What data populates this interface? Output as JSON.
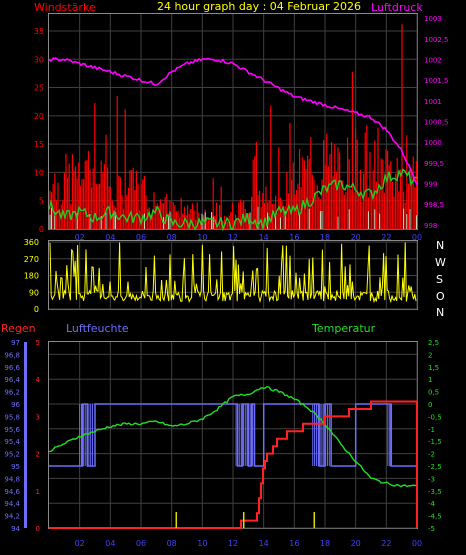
{
  "title": "24 hour graph day : 04 Februar 2026",
  "colors": {
    "wind": "#ff0000",
    "gust": "#ff0000",
    "avg_wind": "#22cc22",
    "pressure": "#ff00ff",
    "direction": "#ffff00",
    "humidity": "#6e6efa",
    "temperature": "#22dd22",
    "rain": "#ff2222",
    "axis_hours": "#4040ff",
    "grid": "#404040",
    "dir_label": "#ffffff"
  },
  "chart_data": [
    {
      "type": "line",
      "name": "wind-pressure",
      "left_label": "Windstärke",
      "right_label": "Luftdruck",
      "x_ticks": [
        "02",
        "04",
        "06",
        "08",
        "10",
        "12",
        "14",
        "16",
        "18",
        "20",
        "22",
        "00"
      ],
      "left_ticks": [
        "0",
        "5",
        "10",
        "15",
        "20",
        "25",
        "30",
        "35"
      ],
      "right_ticks": [
        "998",
        "998,5",
        "999",
        "999,5",
        "1000",
        "1000,5",
        "1001",
        "1001,5",
        "1002",
        "1002,5",
        "1003"
      ],
      "left_ylim": [
        0,
        38
      ],
      "right_ylim": [
        997.9,
        1003.1
      ],
      "x_range_hours": [
        0,
        24
      ],
      "pressure": {
        "x": [
          0,
          1,
          2,
          3,
          4,
          5,
          6,
          7,
          8,
          9,
          10,
          11,
          12,
          13,
          14,
          15,
          16,
          17,
          18,
          19,
          20,
          21,
          22,
          23,
          24
        ],
        "values": [
          1002.0,
          1002.0,
          1001.9,
          1001.8,
          1001.7,
          1001.6,
          1001.5,
          1001.4,
          1001.7,
          1001.9,
          1002.0,
          1002.0,
          1001.9,
          1001.7,
          1001.5,
          1001.3,
          1001.1,
          1001.0,
          1000.9,
          1000.8,
          1000.7,
          1000.6,
          1000.3,
          999.8,
          999.0
        ]
      },
      "avg_wind": {
        "x": [
          0,
          1,
          2,
          3,
          4,
          5,
          6,
          7,
          8,
          9,
          10,
          11,
          12,
          13,
          14,
          15,
          16,
          17,
          18,
          19,
          20,
          21,
          22,
          23,
          24
        ],
        "values": [
          4,
          2,
          3,
          2,
          3,
          2,
          2,
          3,
          1,
          1,
          1,
          1,
          1,
          2,
          1,
          3,
          3,
          5,
          7,
          8,
          7,
          6,
          9,
          10,
          8
        ]
      },
      "gust_level": {
        "x": [
          0,
          2,
          4,
          6,
          8,
          10,
          12,
          14,
          16,
          18,
          20,
          22,
          24
        ],
        "values": [
          9,
          13,
          10,
          9,
          5,
          4,
          4,
          7,
          12,
          15,
          16,
          15,
          14
        ]
      }
    },
    {
      "type": "scatter",
      "name": "wind-direction",
      "y_ticks": [
        "0",
        "90",
        "180",
        "270",
        "360"
      ],
      "ylim": [
        0,
        360
      ],
      "compass": [
        "N",
        "W",
        "S",
        "O",
        "N"
      ]
    },
    {
      "type": "line",
      "name": "humidity-temperature-rain",
      "rain_label": "Regen",
      "humidity_label": "Luftfeuchte",
      "temperature_label": "Temperatur",
      "x_ticks": [
        "02",
        "04",
        "06",
        "08",
        "10",
        "12",
        "14",
        "16",
        "18",
        "20",
        "22",
        "00"
      ],
      "humidity_ticks": [
        "94",
        "94,2",
        "94,4",
        "94,6",
        "94,8",
        "95",
        "95,2",
        "95,4",
        "95,6",
        "95,8",
        "96",
        "96,2",
        "96,4",
        "96,6",
        "96,8",
        "97"
      ],
      "rain_ticks": [
        "0",
        "1",
        "2",
        "3",
        "4",
        "5"
      ],
      "temperature_ticks": [
        "-5",
        "-4,5",
        "-4",
        "-3,5",
        "-3",
        "-2,5",
        "-2",
        "-1,5",
        "-1",
        "-0,5",
        "0",
        "0,5",
        "1",
        "1,5",
        "2",
        "2,5"
      ],
      "humidity_ylim": [
        94,
        97
      ],
      "rain_ylim": [
        0,
        5
      ],
      "temperature_ylim": [
        -5,
        2.5
      ],
      "temperature": {
        "x": [
          0,
          1,
          2,
          3,
          4,
          5,
          6,
          7,
          8,
          9,
          10,
          11,
          12,
          13,
          14,
          15,
          16,
          17,
          18,
          19,
          20,
          21,
          22,
          23,
          24
        ],
        "values": [
          -1.9,
          -1.6,
          -1.3,
          -1.1,
          -0.9,
          -0.8,
          -0.8,
          -0.7,
          -0.9,
          -0.8,
          -0.6,
          -0.2,
          0.3,
          0.4,
          0.7,
          0.5,
          0.2,
          -0.2,
          -0.8,
          -1.6,
          -2.3,
          -3.0,
          -3.2,
          -3.3,
          -3.3
        ]
      },
      "humidity": {
        "x": [
          0,
          2,
          2.2,
          2.5,
          3,
          4,
          6,
          8,
          10,
          12,
          12.3,
          12.6,
          13,
          13.2,
          13.4,
          14,
          16,
          17.3,
          17.6,
          18,
          18.4,
          20,
          22,
          22.3,
          24
        ],
        "values": [
          95,
          95,
          96,
          95,
          96,
          96,
          96,
          96,
          96,
          96,
          95,
          96,
          95,
          96,
          95,
          96,
          96,
          96,
          95,
          96,
          95,
          96,
          96,
          95,
          95
        ]
      },
      "rain": {
        "x": [
          0,
          1,
          2,
          3,
          4,
          5,
          6,
          7,
          8,
          9,
          10,
          11,
          12,
          13.5,
          14,
          15,
          16,
          17,
          18,
          19,
          20,
          21,
          22,
          23,
          24
        ],
        "values": [
          0,
          0,
          0,
          0,
          0,
          0,
          0,
          0,
          0,
          0,
          0,
          0,
          0,
          0.3,
          1.8,
          2.4,
          2.6,
          2.8,
          2.9,
          3.0,
          3.2,
          3.3,
          3.3,
          3.3,
          3.3
        ]
      }
    }
  ]
}
